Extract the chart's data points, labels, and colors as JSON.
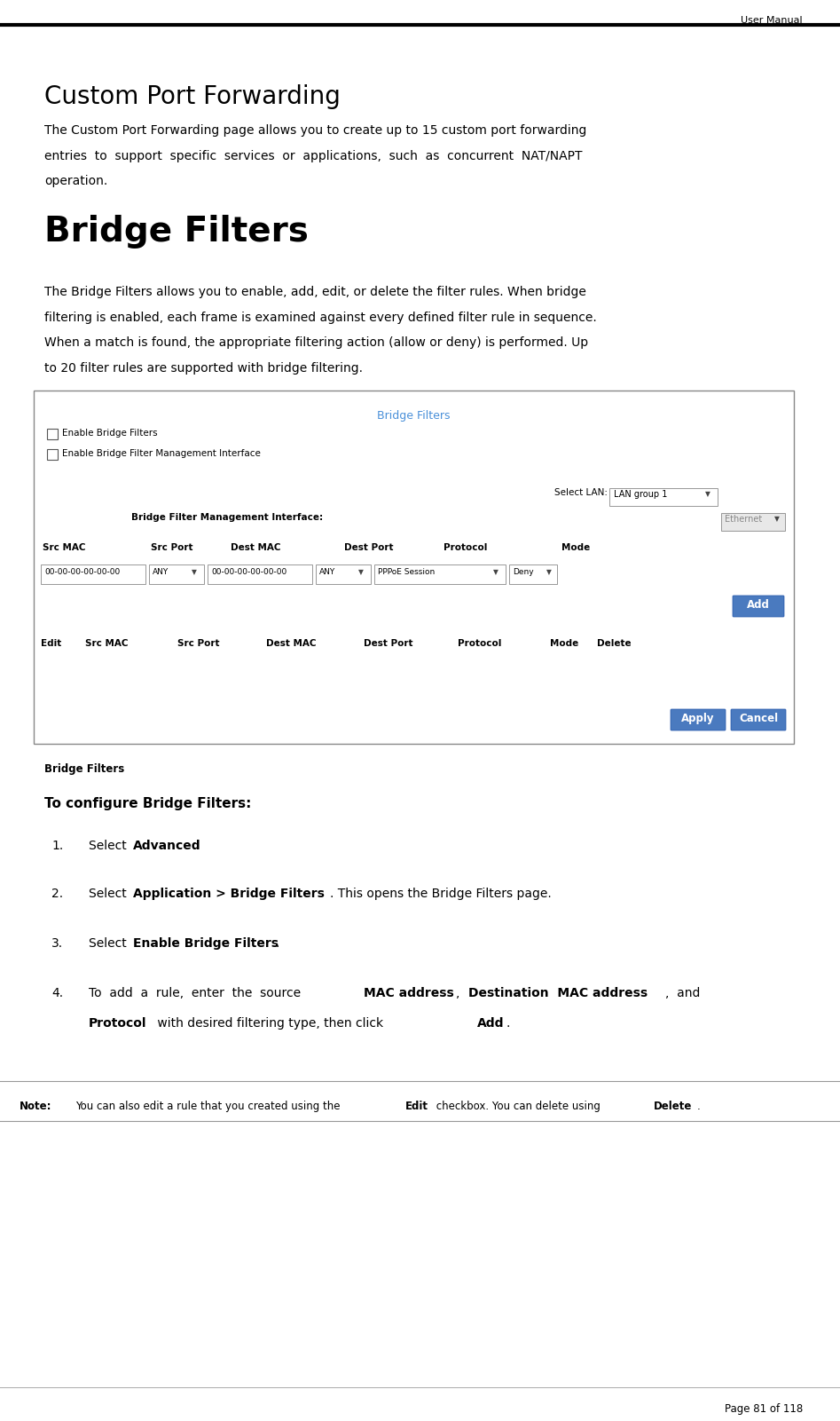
{
  "page_width": 9.47,
  "page_height": 16.01,
  "bg_color": "#ffffff",
  "header_text": "User Manual",
  "header_font_size": 8,
  "section1_title": "Custom Port Forwarding",
  "section1_title_font_size": 20,
  "section2_title": "Bridge Filters",
  "section2_title_font_size": 28,
  "body_font_size": 10,
  "ui_title": "Bridge Filters",
  "ui_title_color": "#4a90d9",
  "ui_border_color": "#888888",
  "checkbox1_label": "Enable Bridge Filters",
  "checkbox2_label": "Enable Bridge Filter Management Interface",
  "select_lan_label": "Select LAN:",
  "select_lan_value": "LAN group 1",
  "bfmi_label": "Bridge Filter Management Interface:",
  "bfmi_value": "Ethernet",
  "src_mac_val": "00-00-00-00-00-00",
  "src_port_val": "ANY",
  "dest_mac_val": "00-00-00-00-00-00",
  "dest_port_val": "ANY",
  "protocol_val": "PPPoE Session",
  "mode_val": "Deny",
  "add_btn_color": "#4a7abf",
  "add_btn_text": "Add",
  "apply_btn_text": "Apply",
  "cancel_btn_text": "Cancel",
  "apply_cancel_btn_color": "#4a7abf",
  "caption_text": "Bridge Filters",
  "instructions_title": "To configure Bridge Filters:",
  "instructions_title_font_size": 11,
  "step_font_size": 10,
  "note_label": "Note:",
  "note_font_size": 8.5,
  "footer_text": "Page 81 of 118",
  "footer_font_size": 8.5
}
